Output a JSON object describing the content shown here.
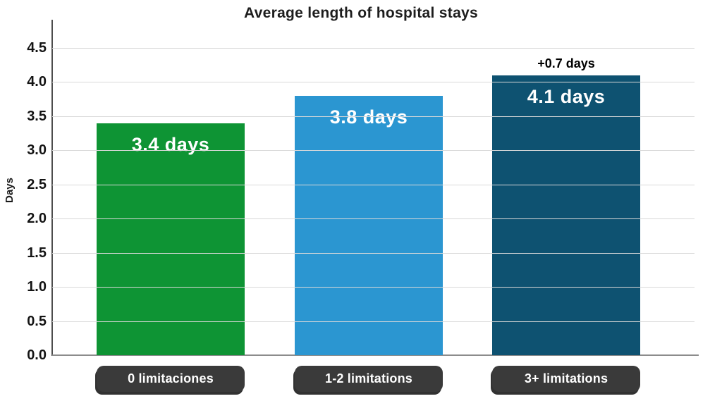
{
  "title": "Average length of hospital stays",
  "y_axis": {
    "label": "Days",
    "ticks": [
      "4.5",
      "4.0",
      "3.5",
      "3.0",
      "2.5",
      "2.0",
      "1.5",
      "1.0",
      "0.5",
      "0.0"
    ]
  },
  "chart_data": {
    "type": "bar",
    "title": "Average length of hospital stays",
    "xlabel": "",
    "ylabel": "Days",
    "categories": [
      "0 limitaciones",
      "1-2 limitations",
      "3+ limitations"
    ],
    "values": [
      3.4,
      3.8,
      4.1
    ],
    "bar_labels": [
      "3.4 days",
      "3.8 days",
      "4.1 days"
    ],
    "annotations": [
      {
        "bar_index": 2,
        "text": "+0.7 days"
      }
    ],
    "ylim": [
      0,
      4.5
    ],
    "ytick_step": 0.5,
    "grid": true,
    "legend": "none",
    "bar_colors": [
      "#0e9434",
      "#2b96d1",
      "#0e5271"
    ],
    "category_pill_color": "#3a3a3a"
  }
}
